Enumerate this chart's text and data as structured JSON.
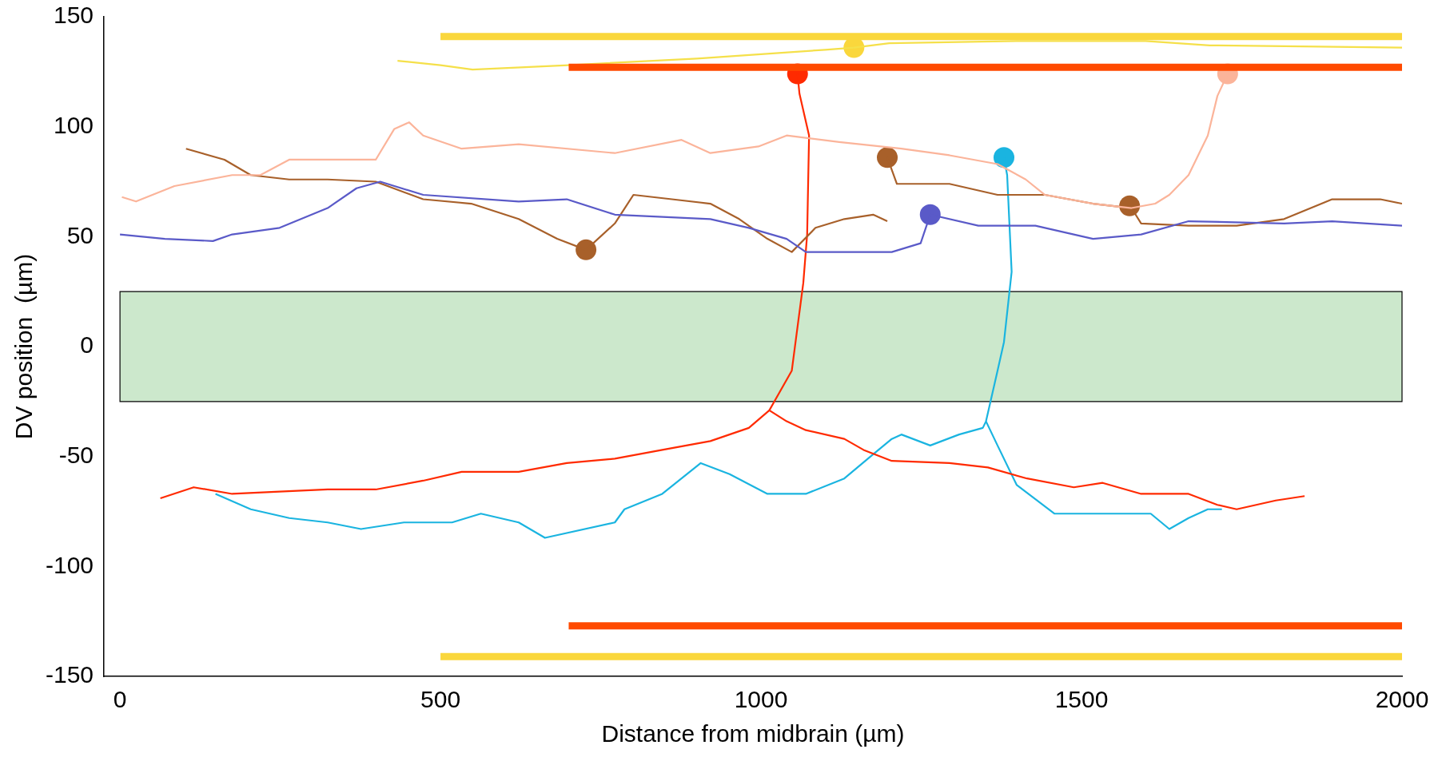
{
  "chart_data": {
    "type": "line",
    "xlabel": "Distance from midbrain (µm)",
    "ylabel": "DV position  (µm)",
    "xlim": [
      -25,
      2000
    ],
    "ylim": [
      -150,
      150
    ],
    "xticks": [
      0,
      500,
      1000,
      1500,
      2000
    ],
    "yticks": [
      -150,
      -100,
      -50,
      0,
      50,
      100,
      150
    ],
    "grid": false,
    "legend": false,
    "marker": "none",
    "line_style": "solid",
    "bands": [
      {
        "axis": "y",
        "from": -25,
        "to": 25,
        "color": "#cce8cc"
      }
    ],
    "series": [
      {
        "type": "line",
        "color": "#fad73c",
        "x": [
          500,
          2000
        ],
        "values": [
          141,
          141
        ]
      },
      {
        "type": "line",
        "color": "#fad73c",
        "x": [
          500,
          2000
        ],
        "values": [
          -141,
          -141
        ]
      },
      {
        "type": "line",
        "color": "#ff4a00",
        "x": [
          700,
          2000
        ],
        "values": [
          127,
          127
        ]
      },
      {
        "type": "line",
        "color": "#ff4a00",
        "x": [
          700,
          2000
        ],
        "values": [
          -127,
          -127
        ]
      },
      {
        "type": "line",
        "color": "#f5e04a",
        "x": [
          433,
          500,
          550,
          700,
          900,
          1000,
          1100,
          1145,
          1200,
          1400,
          1600,
          1700,
          2000
        ],
        "values": [
          130,
          128,
          126,
          128,
          131,
          133,
          135,
          136,
          138,
          139,
          139,
          137,
          136
        ]
      },
      {
        "type": "line",
        "color": "#fbb49a",
        "x": [
          3,
          25,
          85,
          175,
          219,
          264,
          324,
          399,
          428,
          451,
          473,
          533,
          622,
          772,
          876,
          921,
          996,
          1040,
          1122,
          1219,
          1294,
          1369,
          1413,
          1443,
          1518,
          1578,
          1615,
          1637,
          1667,
          1697,
          1712,
          1728
        ],
        "values": [
          68,
          66,
          73,
          78,
          78,
          85,
          85,
          85,
          99,
          102,
          96,
          90,
          92,
          88,
          94,
          88,
          91,
          96,
          93,
          90,
          87,
          83,
          76,
          69,
          65,
          63,
          65,
          69,
          78,
          96,
          114,
          124
        ]
      },
      {
        "type": "line",
        "color": "#5a5ac8",
        "x": [
          0,
          70,
          145,
          175,
          249,
          324,
          369,
          406,
          473,
          622,
          697,
          772,
          921,
          981,
          1040,
          1070,
          1204,
          1249,
          1264,
          1339,
          1428,
          1518,
          1593,
          1667,
          1816,
          1891,
          2000
        ],
        "values": [
          51,
          49,
          48,
          51,
          54,
          63,
          72,
          75,
          69,
          66,
          67,
          60,
          58,
          54,
          49,
          43,
          43,
          47,
          60,
          55,
          55,
          49,
          51,
          57,
          56,
          57,
          55
        ]
      },
      {
        "type": "line",
        "color": "#a8602a",
        "x": [
          103,
          163,
          204,
          264,
          324,
          399,
          473,
          548,
          622,
          682,
          727,
          772,
          801,
          861,
          921,
          966,
          1010,
          1048,
          1085,
          1130,
          1175,
          1197
        ],
        "values": [
          90,
          85,
          78,
          76,
          76,
          75,
          67,
          65,
          58,
          49,
          44,
          56,
          69,
          67,
          65,
          58,
          49,
          43,
          54,
          58,
          60,
          57
        ]
      },
      {
        "type": "line",
        "color": "#a8602a",
        "x": [
          1197,
          1212,
          1294,
          1369,
          1443,
          1518,
          1578,
          1593,
          1667,
          1742,
          1816,
          1891,
          1966,
          2000
        ],
        "values": [
          86,
          74,
          74,
          69,
          69,
          65,
          63,
          56,
          55,
          55,
          58,
          67,
          67,
          65
        ]
      },
      {
        "type": "line",
        "color": "#ff2a00",
        "x": [
          63,
          115,
          175,
          249,
          324,
          399,
          473,
          533,
          622,
          697,
          772,
          846,
          921,
          981,
          1013,
          1040,
          1070,
          1130,
          1160,
          1204,
          1294,
          1354,
          1415,
          1488,
          1533,
          1593,
          1667,
          1712,
          1742,
          1803,
          1848
        ],
        "values": [
          -69,
          -64,
          -67,
          -66,
          -65,
          -65,
          -61,
          -57,
          -57,
          -53,
          -51,
          -47,
          -43,
          -37,
          -29,
          -34,
          -38,
          -42,
          -47,
          -52,
          -53,
          -55,
          -60,
          -64,
          -62,
          -67,
          -67,
          -72,
          -74,
          -70,
          -68
        ]
      },
      {
        "type": "line",
        "color": "#ff2a00",
        "x": [
          1013,
          1048,
          1066,
          1072,
          1075,
          1060,
          1057
        ],
        "values": [
          -29,
          -11,
          29,
          51,
          96,
          115,
          124
        ]
      },
      {
        "type": "line",
        "color": "#1ab4e0",
        "x": [
          149,
          204,
          264,
          324,
          376,
          443,
          518,
          563,
          622,
          663,
          772,
          787,
          846,
          906,
          951,
          1010,
          1070,
          1130,
          1175,
          1204,
          1219,
          1264,
          1309,
          1346,
          1351,
          1369,
          1399,
          1458,
          1533,
          1608,
          1637,
          1667,
          1697,
          1719
        ],
        "values": [
          -67,
          -74,
          -78,
          -80,
          -83,
          -80,
          -80,
          -76,
          -80,
          -87,
          -80,
          -74,
          -67,
          -53,
          -58,
          -67,
          -67,
          -60,
          -49,
          -42,
          -40,
          -45,
          -40,
          -37,
          -34,
          -45,
          -63,
          -76,
          -76,
          -76,
          -83,
          -78,
          -74,
          -74
        ]
      },
      {
        "type": "line",
        "color": "#1ab4e0",
        "x": [
          1351,
          1369,
          1379,
          1391,
          1384,
          1379
        ],
        "values": [
          -34,
          -11,
          2,
          34,
          78,
          86
        ]
      },
      {
        "type": "scatter",
        "marker": "circle",
        "color": "#fad73c",
        "x": [
          1145
        ],
        "values": [
          136
        ]
      },
      {
        "type": "scatter",
        "marker": "circle",
        "color": "#ff2a00",
        "x": [
          1057
        ],
        "values": [
          124
        ]
      },
      {
        "type": "scatter",
        "marker": "circle",
        "color": "#fbb49a",
        "x": [
          1728
        ],
        "values": [
          124
        ]
      },
      {
        "type": "scatter",
        "marker": "circle",
        "color": "#1ab4e0",
        "x": [
          1379
        ],
        "values": [
          86
        ]
      },
      {
        "type": "scatter",
        "marker": "circle",
        "color": "#5a5ac8",
        "x": [
          1264
        ],
        "values": [
          60
        ]
      },
      {
        "type": "scatter",
        "marker": "circle",
        "color": "#a8602a",
        "x": [
          727,
          1197,
          1575
        ],
        "values": [
          44,
          86,
          64
        ]
      }
    ]
  }
}
